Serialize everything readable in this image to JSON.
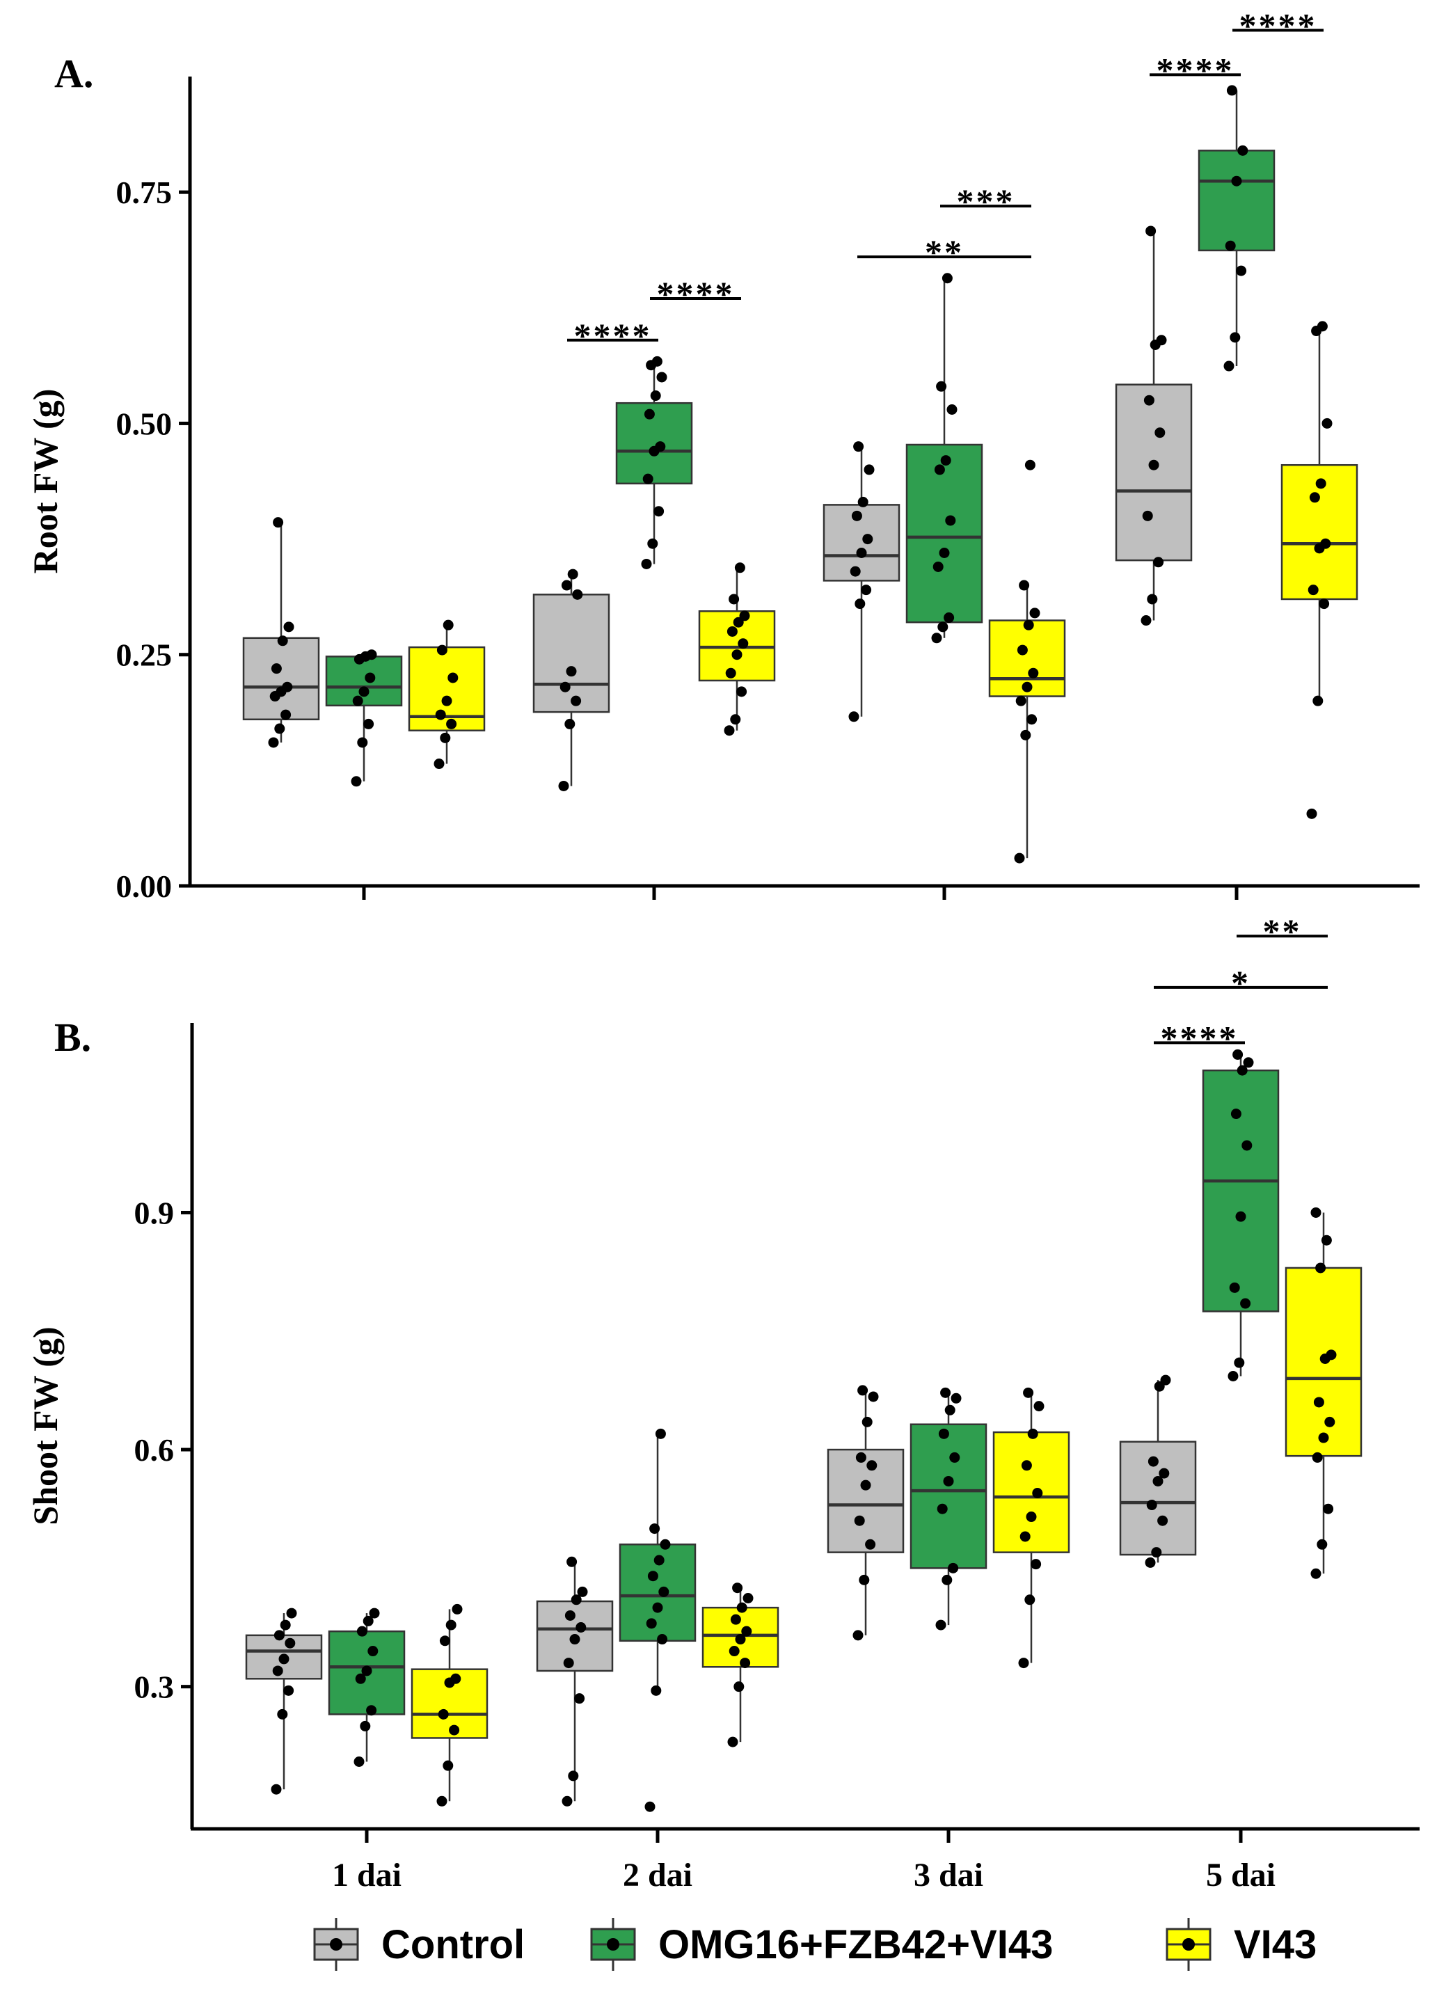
{
  "chart_data": [
    {
      "panel_label": "A.",
      "type": "box",
      "ylabel": "Root FW (g)",
      "ylim": [
        0.0,
        0.875
      ],
      "yticks": [
        0.0,
        0.25,
        0.5,
        0.75
      ],
      "ytick_labels": [
        "0.00",
        "0.25",
        "0.50",
        "0.75"
      ],
      "show_x_tick_labels": false,
      "groups": [
        {
          "category": "1 dai",
          "series": "Control",
          "min": 0.155,
          "q1": 0.18,
          "median": 0.215,
          "q3": 0.268,
          "max": 0.393,
          "points": [
            0.155,
            0.17,
            0.185,
            0.205,
            0.21,
            0.215,
            0.235,
            0.265,
            0.28,
            0.393
          ]
        },
        {
          "category": "1 dai",
          "series": "OMG16+FZB42+VI43",
          "min": 0.113,
          "q1": 0.195,
          "median": 0.215,
          "q3": 0.248,
          "max": 0.252,
          "points": [
            0.113,
            0.155,
            0.175,
            0.2,
            0.21,
            0.225,
            0.245,
            0.248,
            0.25
          ]
        },
        {
          "category": "1 dai",
          "series": "VI43",
          "min": 0.132,
          "q1": 0.168,
          "median": 0.183,
          "q3": 0.258,
          "max": 0.282,
          "points": [
            0.132,
            0.16,
            0.175,
            0.185,
            0.2,
            0.225,
            0.255,
            0.282
          ]
        },
        {
          "category": "2 dai",
          "series": "Control",
          "min": 0.108,
          "q1": 0.188,
          "median": 0.218,
          "q3": 0.315,
          "max": 0.337,
          "points": [
            0.108,
            0.175,
            0.2,
            0.215,
            0.232,
            0.315,
            0.325,
            0.337
          ]
        },
        {
          "category": "2 dai",
          "series": "OMG16+FZB42+VI43",
          "min": 0.348,
          "q1": 0.435,
          "median": 0.47,
          "q3": 0.522,
          "max": 0.567,
          "points": [
            0.348,
            0.37,
            0.405,
            0.44,
            0.47,
            0.475,
            0.51,
            0.53,
            0.55,
            0.563,
            0.567
          ]
        },
        {
          "category": "2 dai",
          "series": "VI43",
          "min": 0.168,
          "q1": 0.222,
          "median": 0.258,
          "q3": 0.297,
          "max": 0.344,
          "points": [
            0.168,
            0.18,
            0.21,
            0.23,
            0.25,
            0.262,
            0.275,
            0.285,
            0.292,
            0.31,
            0.344
          ]
        },
        {
          "category": "3 dai",
          "series": "Control",
          "min": 0.183,
          "q1": 0.33,
          "median": 0.357,
          "q3": 0.412,
          "max": 0.475,
          "points": [
            0.183,
            0.305,
            0.32,
            0.34,
            0.36,
            0.375,
            0.4,
            0.415,
            0.45,
            0.475
          ]
        },
        {
          "category": "3 dai",
          "series": "OMG16+FZB42+VI43",
          "min": 0.268,
          "q1": 0.285,
          "median": 0.377,
          "q3": 0.477,
          "max": 0.657,
          "points": [
            0.268,
            0.28,
            0.29,
            0.345,
            0.36,
            0.395,
            0.45,
            0.46,
            0.515,
            0.54,
            0.657
          ]
        },
        {
          "category": "3 dai",
          "series": "VI43",
          "min": 0.03,
          "q1": 0.205,
          "median": 0.224,
          "q3": 0.287,
          "max": 0.325,
          "points": [
            0.03,
            0.163,
            0.18,
            0.2,
            0.215,
            0.23,
            0.255,
            0.282,
            0.295,
            0.325,
            0.455
          ]
        },
        {
          "category": "5 dai",
          "series": "Control",
          "min": 0.287,
          "q1": 0.352,
          "median": 0.427,
          "q3": 0.542,
          "max": 0.708,
          "points": [
            0.287,
            0.31,
            0.35,
            0.4,
            0.455,
            0.49,
            0.525,
            0.585,
            0.59,
            0.708
          ]
        },
        {
          "category": "5 dai",
          "series": "OMG16+FZB42+VI43",
          "min": 0.562,
          "q1": 0.687,
          "median": 0.762,
          "q3": 0.795,
          "max": 0.86,
          "points": [
            0.562,
            0.593,
            0.665,
            0.692,
            0.762,
            0.795,
            0.86
          ]
        },
        {
          "category": "5 dai",
          "series": "VI43",
          "min": 0.2,
          "q1": 0.31,
          "median": 0.37,
          "q3": 0.455,
          "max": 0.605,
          "points": [
            0.078,
            0.2,
            0.305,
            0.32,
            0.365,
            0.37,
            0.42,
            0.435,
            0.5,
            0.6,
            0.605
          ]
        }
      ],
      "significance": [
        {
          "category": "2 dai",
          "from": "Control",
          "to": "OMG16+FZB42+VI43",
          "label": "****",
          "y": 0.59
        },
        {
          "category": "2 dai",
          "from": "OMG16+FZB42+VI43",
          "to": "VI43",
          "label": "****",
          "y": 0.635
        },
        {
          "category": "3 dai",
          "from": "Control",
          "to": "VI43",
          "label": "**",
          "y": 0.68
        },
        {
          "category": "3 dai",
          "from": "OMG16+FZB42+VI43",
          "to": "VI43",
          "label": "***",
          "y": 0.735
        },
        {
          "category": "5 dai",
          "from": "Control",
          "to": "OMG16+FZB42+VI43",
          "label": "****",
          "y": 0.877
        },
        {
          "category": "5 dai",
          "from": "OMG16+FZB42+VI43",
          "to": "VI43",
          "label": "****",
          "y": 0.925
        }
      ]
    },
    {
      "panel_label": "B.",
      "type": "box",
      "ylabel": "Shoot FW (g)",
      "ylim": [
        0.12,
        1.14
      ],
      "yticks": [
        0.3,
        0.6,
        0.9
      ],
      "ytick_labels": [
        "0.3",
        "0.6",
        "0.9"
      ],
      "show_x_tick_labels": true,
      "groups": [
        {
          "category": "1 dai",
          "series": "Control",
          "min": 0.17,
          "q1": 0.31,
          "median": 0.345,
          "q3": 0.365,
          "max": 0.393,
          "points": [
            0.17,
            0.265,
            0.295,
            0.32,
            0.335,
            0.355,
            0.365,
            0.378,
            0.393
          ]
        },
        {
          "category": "1 dai",
          "series": "OMG16+FZB42+VI43",
          "min": 0.205,
          "q1": 0.265,
          "median": 0.325,
          "q3": 0.37,
          "max": 0.393,
          "points": [
            0.205,
            0.25,
            0.27,
            0.31,
            0.32,
            0.345,
            0.37,
            0.383,
            0.393
          ]
        },
        {
          "category": "1 dai",
          "series": "VI43",
          "min": 0.155,
          "q1": 0.235,
          "median": 0.265,
          "q3": 0.322,
          "max": 0.398,
          "points": [
            0.155,
            0.2,
            0.245,
            0.265,
            0.305,
            0.31,
            0.358,
            0.378,
            0.398
          ]
        },
        {
          "category": "2 dai",
          "series": "Control",
          "min": 0.155,
          "q1": 0.32,
          "median": 0.373,
          "q3": 0.408,
          "max": 0.458,
          "points": [
            0.155,
            0.187,
            0.285,
            0.33,
            0.36,
            0.375,
            0.39,
            0.41,
            0.42,
            0.458
          ]
        },
        {
          "category": "2 dai",
          "series": "OMG16+FZB42+VI43",
          "min": 0.295,
          "q1": 0.358,
          "median": 0.415,
          "q3": 0.48,
          "max": 0.62,
          "points": [
            0.148,
            0.295,
            0.36,
            0.38,
            0.4,
            0.42,
            0.44,
            0.46,
            0.48,
            0.5,
            0.62
          ]
        },
        {
          "category": "2 dai",
          "series": "VI43",
          "min": 0.23,
          "q1": 0.325,
          "median": 0.365,
          "q3": 0.4,
          "max": 0.425,
          "points": [
            0.23,
            0.3,
            0.33,
            0.345,
            0.36,
            0.37,
            0.385,
            0.4,
            0.412,
            0.425
          ]
        },
        {
          "category": "3 dai",
          "series": "Control",
          "min": 0.365,
          "q1": 0.47,
          "median": 0.53,
          "q3": 0.6,
          "max": 0.675,
          "points": [
            0.365,
            0.435,
            0.48,
            0.51,
            0.555,
            0.58,
            0.59,
            0.635,
            0.667,
            0.675
          ]
        },
        {
          "category": "3 dai",
          "series": "OMG16+FZB42+VI43",
          "min": 0.378,
          "q1": 0.45,
          "median": 0.548,
          "q3": 0.632,
          "max": 0.672,
          "points": [
            0.378,
            0.435,
            0.45,
            0.525,
            0.56,
            0.59,
            0.62,
            0.65,
            0.665,
            0.672
          ]
        },
        {
          "category": "3 dai",
          "series": "VI43",
          "min": 0.33,
          "q1": 0.47,
          "median": 0.54,
          "q3": 0.622,
          "max": 0.672,
          "points": [
            0.33,
            0.41,
            0.455,
            0.49,
            0.515,
            0.545,
            0.58,
            0.62,
            0.655,
            0.672
          ]
        },
        {
          "category": "5 dai",
          "series": "Control",
          "min": 0.457,
          "q1": 0.467,
          "median": 0.533,
          "q3": 0.61,
          "max": 0.688,
          "points": [
            0.457,
            0.47,
            0.51,
            0.53,
            0.56,
            0.57,
            0.585,
            0.68,
            0.688
          ]
        },
        {
          "category": "5 dai",
          "series": "OMG16+FZB42+VI43",
          "min": 0.693,
          "q1": 0.775,
          "median": 0.94,
          "q3": 1.08,
          "max": 1.1,
          "points": [
            0.693,
            0.71,
            0.785,
            0.805,
            0.895,
            0.985,
            1.025,
            1.08,
            1.09,
            1.1
          ]
        },
        {
          "category": "5 dai",
          "series": "VI43",
          "min": 0.443,
          "q1": 0.592,
          "median": 0.69,
          "q3": 0.83,
          "max": 0.9,
          "points": [
            0.443,
            0.48,
            0.525,
            0.59,
            0.615,
            0.635,
            0.66,
            0.715,
            0.72,
            0.83,
            0.865,
            0.9
          ]
        }
      ],
      "significance": [
        {
          "category": "5 dai",
          "from": "Control",
          "to": "OMG16+FZB42+VI43",
          "label": "****",
          "y": 1.115
        },
        {
          "category": "5 dai",
          "from": "Control",
          "to": "VI43",
          "label": "*",
          "y": 1.185
        },
        {
          "category": "5 dai",
          "from": "OMG16+FZB42+VI43",
          "to": "VI43",
          "label": "**",
          "y": 1.25
        }
      ]
    }
  ],
  "categories": [
    "1 dai",
    "2 dai",
    "3 dai",
    "5 dai"
  ],
  "series": [
    {
      "name": "Control",
      "color": "#bfbfbf"
    },
    {
      "name": "OMG16+FZB42+VI43",
      "color": "#2f9e4f"
    },
    {
      "name": "VI43",
      "color": "#ffff00"
    }
  ],
  "legend": {
    "position": "bottom",
    "items": [
      "Control",
      "OMG16+FZB42+VI43",
      "VI43"
    ]
  }
}
